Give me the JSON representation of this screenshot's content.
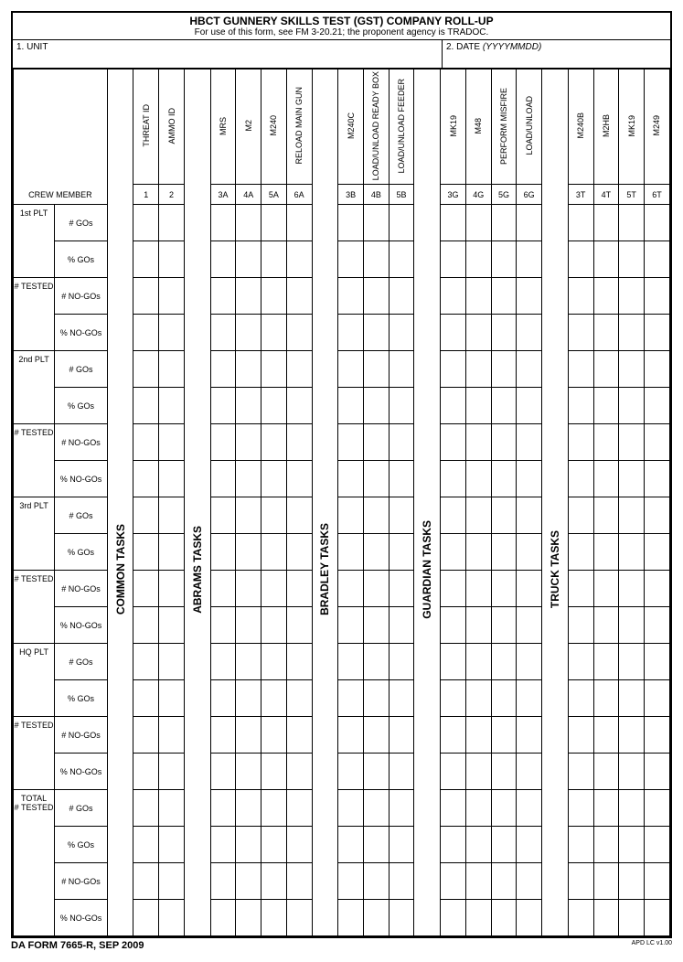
{
  "title": {
    "main": "HBCT GUNNERY SKILLS TEST (GST) COMPANY ROLL-UP",
    "sub": "For use of this form, see FM 3-20.21; the proponent agency is TRADOC."
  },
  "fields": {
    "unit_label": "1. UNIT",
    "date_label": "2.  DATE ",
    "date_hint": "(YYYYMMDD)"
  },
  "groups": {
    "common": "COMMON TASKS",
    "abrams": "ABRAMS TASKS",
    "bradley": "BRADLEY TASKS",
    "guardian": "GUARDIAN TASKS",
    "truck": "TRUCK TASKS"
  },
  "cols": {
    "threat_id": "THREAT ID",
    "ammo_id": "AMMO ID",
    "mrs": "MRS",
    "m2": "M2",
    "m240": "M240",
    "reload_main": "RELOAD MAIN GUN",
    "m240c": "M240C",
    "load_ready": "LOAD/UNLOAD READY BOX",
    "load_feeder": "LOAD/UNLOAD FEEDER",
    "mk19": "MK19",
    "m48": "M48",
    "misfire": "PERFORM MISFIRE",
    "load_unload": "LOAD/UNLOAD",
    "m240b": "M240B",
    "m2hb": "M2HB",
    "mk19_t": "MK19",
    "m249": "M249"
  },
  "crew": {
    "label": "CREW MEMBER",
    "c1": "1",
    "c2": "2",
    "c3a": "3A",
    "c4a": "4A",
    "c5a": "5A",
    "c6a": "6A",
    "c3b": "3B",
    "c4b": "4B",
    "c5b": "5B",
    "c3g": "3G",
    "c4g": "4G",
    "c5g": "5G",
    "c6g": "6G",
    "c3t": "3T",
    "c4t": "4T",
    "c5t": "5T",
    "c6t": "6T"
  },
  "rows": {
    "plt1": "1st PLT",
    "plt2": "2nd PLT",
    "plt3": "3rd PLT",
    "hq": "HQ PLT",
    "tested": "# TESTED",
    "total": "TOTAL # TESTED",
    "gos": "# GOs",
    "pgos": "% GOs",
    "nogos": "# NO-GOs",
    "pnogos": "% NO-GOs"
  },
  "footer": {
    "left": "DA FORM 7665-R, SEP 2009",
    "right": "APD LC v1.00"
  }
}
